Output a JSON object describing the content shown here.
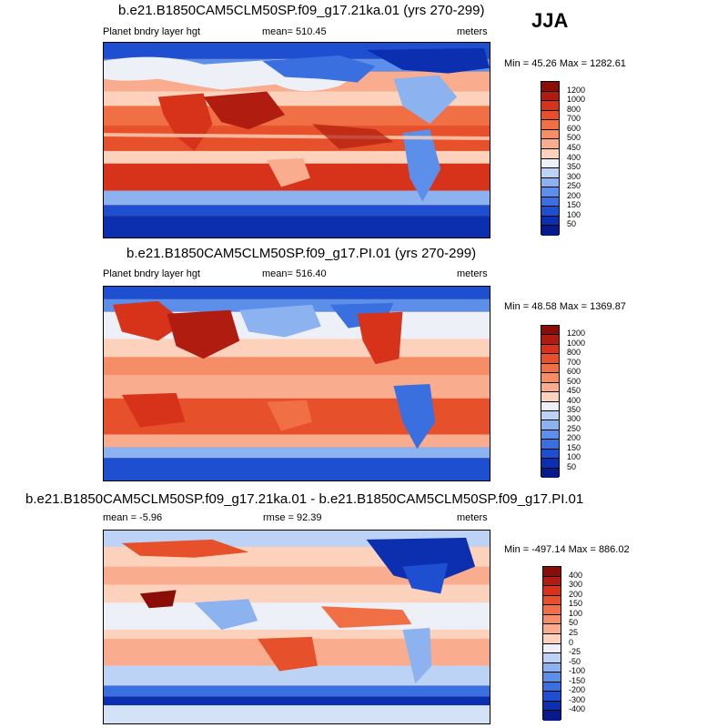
{
  "season": "JJA",
  "palette_colors": {
    "deep_blue": "#061a8c",
    "blue": "#1f5ce0",
    "light_blue": "#bcd3f5",
    "white": "#f4f4f6",
    "peach": "#fcd2bc",
    "orange": "#f5875e",
    "red": "#e1451e",
    "dark_red": "#8a0d08"
  },
  "chart_data": [
    {
      "type": "heatmap",
      "title": "b.e21.B1850CAM5CLM50SP.f09_g17.21ka.01 (yrs 270-299)",
      "left_label": "Planet bndry layer hgt",
      "center_label": "mean= 510.45",
      "right_label": "meters",
      "minmax_label": "Min =  45.26 Max = 1282.61",
      "colorbar_levels": [
        "1200",
        "1000",
        "800",
        "700",
        "600",
        "500",
        "450",
        "400",
        "350",
        "300",
        "250",
        "200",
        "150",
        "100",
        "50"
      ],
      "colorbar_colors": [
        "#8a0d08",
        "#b01c10",
        "#d6331a",
        "#e6502a",
        "#f06f44",
        "#f58d66",
        "#f9ac8e",
        "#fcd2bc",
        "#eef0f8",
        "#bcd3f5",
        "#8cb3ef",
        "#5c8fea",
        "#3a6fe0",
        "#1f4fd1",
        "#0c2fb0",
        "#061a8c"
      ]
    },
    {
      "type": "heatmap",
      "title": "b.e21.B1850CAM5CLM50SP.f09_g17.PI.01 (yrs 270-299)",
      "left_label": "Planet bndry layer hgt",
      "center_label": "mean= 516.40",
      "right_label": "meters",
      "minmax_label": "Min =  48.58 Max = 1369.87",
      "colorbar_levels": [
        "1200",
        "1000",
        "800",
        "700",
        "600",
        "500",
        "450",
        "400",
        "350",
        "300",
        "250",
        "200",
        "150",
        "100",
        "50"
      ],
      "colorbar_colors": [
        "#8a0d08",
        "#b01c10",
        "#d6331a",
        "#e6502a",
        "#f06f44",
        "#f58d66",
        "#f9ac8e",
        "#fcd2bc",
        "#eef0f8",
        "#bcd3f5",
        "#8cb3ef",
        "#5c8fea",
        "#3a6fe0",
        "#1f4fd1",
        "#0c2fb0",
        "#061a8c"
      ]
    },
    {
      "type": "heatmap",
      "title": "b.e21.B1850CAM5CLM50SP.f09_g17.21ka.01 - b.e21.B1850CAM5CLM50SP.f09_g17.PI.01",
      "left_label": "mean =  -5.96",
      "center_label": "rmse =  92.39",
      "right_label": "meters",
      "minmax_label": "Min = -497.14 Max = 886.02",
      "colorbar_levels": [
        "400",
        "300",
        "200",
        "150",
        "100",
        "50",
        "25",
        "0",
        "-25",
        "-50",
        "-100",
        "-150",
        "-200",
        "-300",
        "-400"
      ],
      "colorbar_colors": [
        "#8a0d08",
        "#b01c10",
        "#d6331a",
        "#e6502a",
        "#f06f44",
        "#f58d66",
        "#f9ac8e",
        "#fcd2bc",
        "#eef0f8",
        "#bcd3f5",
        "#8cb3ef",
        "#5c8fea",
        "#3a6fe0",
        "#1f4fd1",
        "#0c2fb0",
        "#061a8c"
      ]
    }
  ]
}
